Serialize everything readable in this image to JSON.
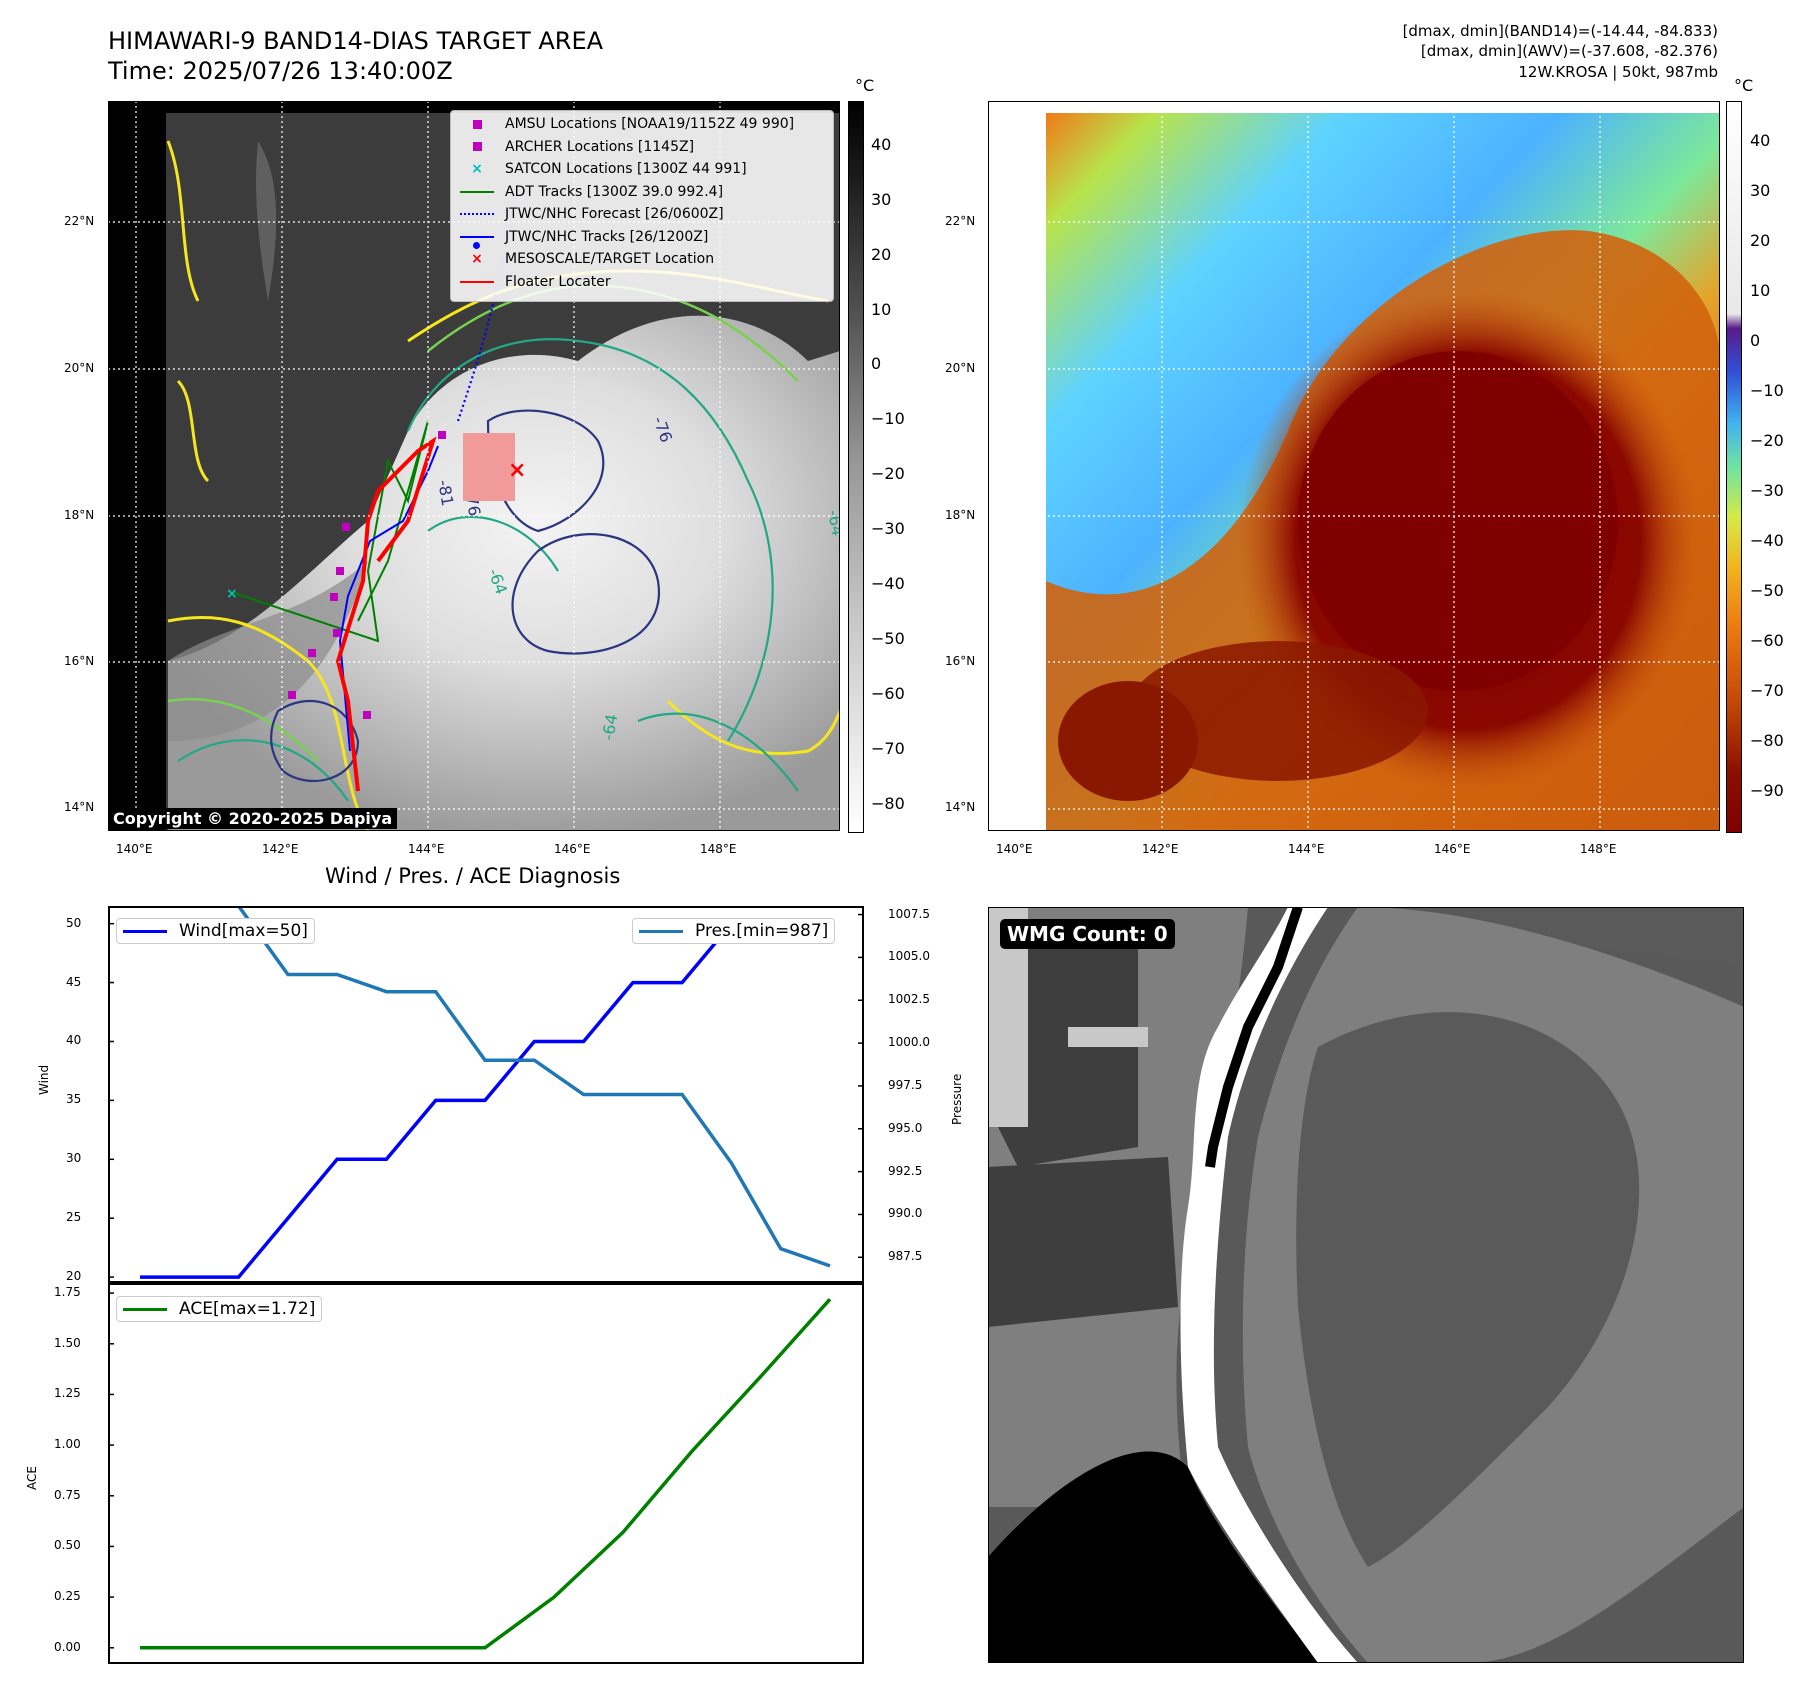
{
  "header": {
    "title_line1": "HIMAWARI-9 BAND14-DIAS TARGET AREA",
    "title_line2": "Time: 2025/07/26 13:40:00Z",
    "info_line1": "[dmax, dmin](BAND14)=(-14.44, -84.833)",
    "info_line2": "[dmax, dmin](AWV)=(-37.608, -82.376)",
    "info_line3": "12W.KROSA | 50kt, 987mb"
  },
  "map": {
    "lat_labels": [
      "22°N",
      "20°N",
      "18°N",
      "16°N",
      "14°N"
    ],
    "lon_labels": [
      "140°E",
      "142°E",
      "144°E",
      "146°E",
      "148°E"
    ],
    "copyright": "Copyright © 2020-2025 Dapiya",
    "contour_labels": [
      "-76",
      "-81",
      "-76",
      "-64",
      "-64",
      "-64"
    ],
    "legend": [
      {
        "label": "AMSU Locations [NOAA19/1152Z 49 990]",
        "symbol": "square",
        "color": "#bf00bf"
      },
      {
        "label": "ARCHER Locations [1145Z]",
        "symbol": "square",
        "color": "#bf00bf"
      },
      {
        "label": "SATCON Locations [1300Z 44 991]",
        "symbol": "x",
        "color": "#00bfbf"
      },
      {
        "label": "ADT Tracks [1300Z 39.0 992.4]",
        "symbol": "line",
        "color": "#008000"
      },
      {
        "label": "JTWC/NHC Forecast [26/0600Z]",
        "symbol": "dotted",
        "color": "#0000ff"
      },
      {
        "label": "JTWC/NHC Tracks [26/1200Z]",
        "symbol": "line-dot",
        "color": "#0000ff"
      },
      {
        "label": "MESOSCALE/TARGET Location",
        "symbol": "x",
        "color": "#ff0000"
      },
      {
        "label": "Floater Locater",
        "symbol": "line",
        "color": "#ff0000"
      }
    ]
  },
  "colorbar_band14": {
    "unit": "°C",
    "ticks": [
      "40",
      "30",
      "20",
      "10",
      "0",
      "−10",
      "−20",
      "−30",
      "−40",
      "−50",
      "−60",
      "−70",
      "−80"
    ]
  },
  "colorbar_awv": {
    "unit": "°C",
    "ticks": [
      "40",
      "30",
      "20",
      "10",
      "0",
      "−10",
      "−20",
      "−30",
      "−40",
      "−50",
      "−60",
      "−70",
      "−80",
      "−90"
    ]
  },
  "wmg": {
    "label": "WMG Count: 0"
  },
  "colors": {
    "wind": "#0000ff",
    "pressure": "#1f77b4",
    "ace": "#008000"
  },
  "chart_data": [
    {
      "type": "line",
      "title": "Wind / Pres. / ACE Diagnosis",
      "ylabel": "Wind",
      "y2label": "Pressure",
      "ylim": [
        19.5,
        51.5
      ],
      "y2lim": [
        986.0,
        1008.0
      ],
      "yticks": [
        "50",
        "45",
        "40",
        "35",
        "30",
        "25",
        "20"
      ],
      "y2ticks": [
        "1007.5",
        "1005.0",
        "1002.5",
        "1000.0",
        "997.5",
        "995.0",
        "992.5",
        "990.0",
        "987.5"
      ],
      "series": [
        {
          "name": "Wind[max=50]",
          "axis": "left",
          "values": [
            20,
            20,
            20,
            25,
            30,
            30,
            35,
            35,
            40,
            40,
            45,
            45,
            50,
            50,
            50
          ]
        },
        {
          "name": "Pres.[min=987]",
          "axis": "right",
          "values": [
            1008,
            1008,
            1008,
            1004,
            1004,
            1003,
            1003,
            999,
            999,
            997,
            997,
            997,
            993,
            988,
            987
          ]
        }
      ]
    },
    {
      "type": "line",
      "ylabel": "ACE",
      "ylim": [
        -0.08,
        1.8
      ],
      "yticks": [
        "1.75",
        "1.50",
        "1.25",
        "1.00",
        "0.75",
        "0.50",
        "0.25",
        "0.00"
      ],
      "series": [
        {
          "name": "ACE[max=1.72]",
          "values": [
            0,
            0,
            0,
            0,
            0,
            0,
            0.25,
            0.57,
            0.97,
            1.34,
            1.72
          ]
        }
      ]
    }
  ]
}
